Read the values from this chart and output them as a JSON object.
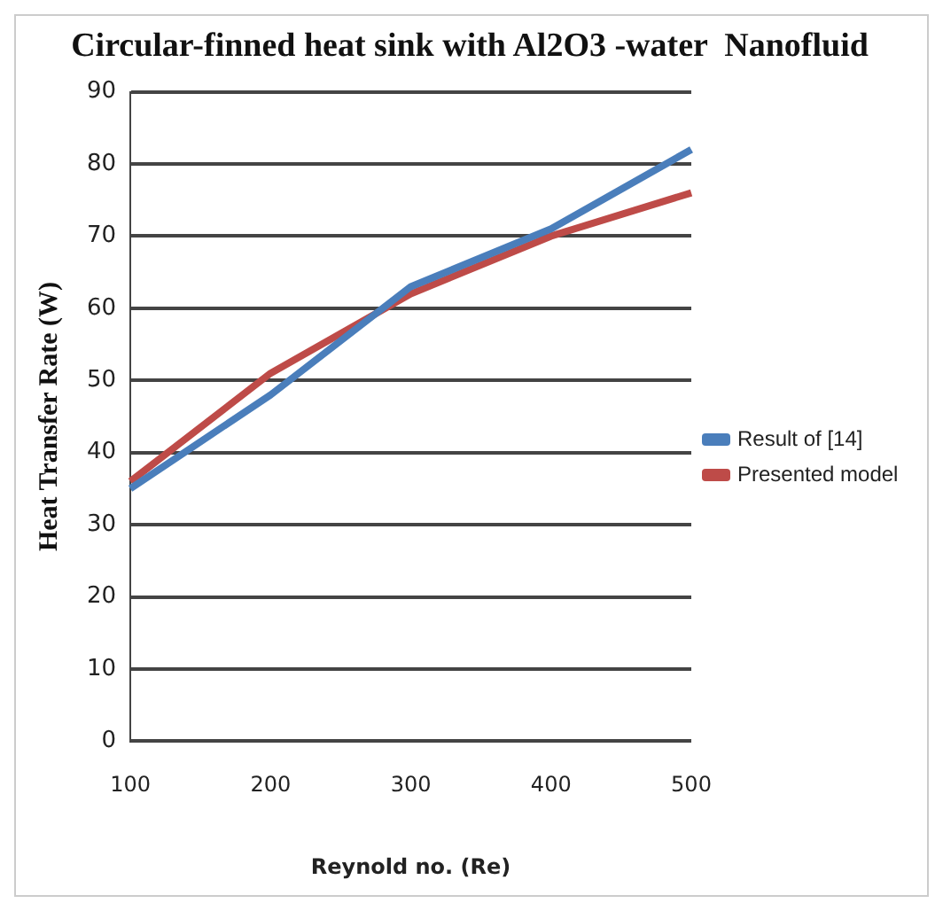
{
  "chart_data": {
    "type": "line",
    "title": "Circular-finned heat sink with Al2O3 -water  Nanofluid",
    "xlabel": "Reynold no. (Re)",
    "ylabel": "Heat Transfer Rate (W)",
    "categories": [
      "100",
      "200",
      "300",
      "400",
      "500"
    ],
    "series": [
      {
        "name": "Result of [14]",
        "color": "#4a7ebb",
        "values": [
          35,
          48,
          63,
          71,
          82
        ]
      },
      {
        "name": "Presented model",
        "color": "#be4b48",
        "values": [
          36,
          51,
          62,
          70,
          76
        ]
      }
    ],
    "ylim": [
      0,
      90
    ],
    "yticks": [
      0,
      10,
      20,
      30,
      40,
      50,
      60,
      70,
      80,
      90
    ],
    "grid": "y",
    "legend": "right",
    "marker": "none",
    "line_style": "solid"
  }
}
